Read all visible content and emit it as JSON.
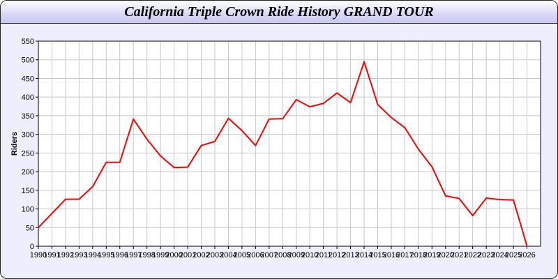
{
  "chart_data": {
    "type": "line",
    "title": "California Triple Crown Ride History GRAND TOUR",
    "xlabel": "",
    "ylabel": "Riders",
    "xlim": [
      1990,
      2027
    ],
    "ylim": [
      0,
      550
    ],
    "grid": true,
    "x": [
      1990,
      1991,
      1992,
      1993,
      1994,
      1995,
      1996,
      1997,
      1998,
      1999,
      2000,
      2001,
      2002,
      2003,
      2004,
      2005,
      2006,
      2007,
      2008,
      2009,
      2010,
      2011,
      2012,
      2013,
      2014,
      2015,
      2016,
      2017,
      2018,
      2019,
      2020,
      2021,
      2022,
      2023,
      2024,
      2025,
      2026
    ],
    "series": [
      {
        "color": "#ff0000",
        "values": [
          50,
          88,
          126,
          126,
          160,
          225,
          225,
          341,
          287,
          242,
          211,
          212,
          270,
          281,
          343,
          310,
          270,
          341,
          342,
          393,
          374,
          383,
          411,
          385,
          495,
          380,
          345,
          318,
          260,
          213,
          135,
          128,
          82,
          129,
          125,
          124,
          0
        ]
      }
    ],
    "y_ticks": [
      0,
      50,
      100,
      150,
      200,
      250,
      300,
      350,
      400,
      450,
      500,
      550
    ],
    "x_ticks": [
      "1990",
      "1991",
      "1992",
      "1993",
      "1994",
      "1995",
      "1996",
      "1997",
      "1998",
      "1999",
      "2000",
      "2001",
      "2002",
      "2003",
      "2004",
      "2005",
      "2006",
      "2007",
      "2008",
      "2009",
      "2010",
      "2011",
      "2012",
      "2013",
      "2014",
      "2015",
      "2016",
      "2017",
      "2018",
      "2019",
      "2020",
      "2021",
      "2022",
      "2023",
      "2024",
      "2025",
      "2026"
    ]
  }
}
